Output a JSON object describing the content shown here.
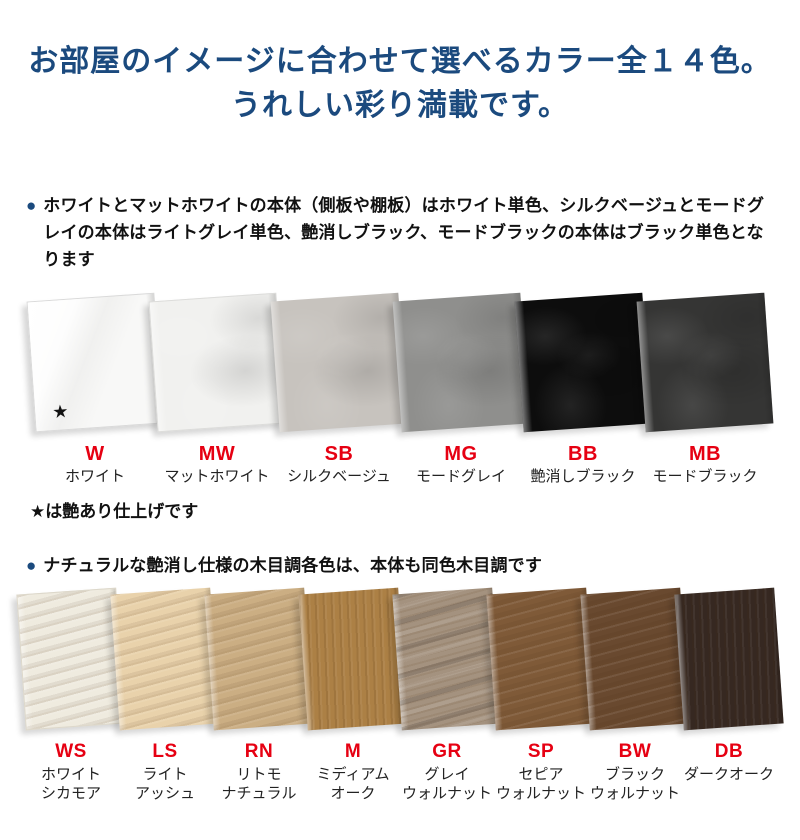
{
  "colors": {
    "accent_blue": "#1b4a7e",
    "code_red": "#e60012"
  },
  "title": {
    "line1": "お部屋のイメージに合わせて選べるカラー全１４色。",
    "line2": "うれしい彩り満載です。"
  },
  "bullet_glyph": "●",
  "section1": {
    "note": "ホワイトとマットホワイトの本体（側板や棚板）はホワイト単色、シルクベージュとモードグレイの本体はライトグレイ単色、艶消しブラック、モードブラックの本体はブラック単色となります",
    "footnote": "は艶あり仕上げです",
    "footnote_star": "★",
    "swatches": [
      {
        "code": "W",
        "name": "ホワイト",
        "color": "#f8f8f7",
        "texture": "gloss",
        "border": "#d9d9d9",
        "star": "★"
      },
      {
        "code": "MW",
        "name": "マットホワイト",
        "color": "#f1f1ef",
        "texture": "mottle",
        "border": "#dcdcda"
      },
      {
        "code": "SB",
        "name": "シルクベージュ",
        "color": "#c7c3be",
        "texture": "mottle"
      },
      {
        "code": "MG",
        "name": "モードグレイ",
        "color": "#8f8f8d",
        "texture": "mottle"
      },
      {
        "code": "BB",
        "name": "艶消しブラック",
        "color": "#0d0d0d",
        "texture": "mottle"
      },
      {
        "code": "MB",
        "name": "モードブラック",
        "color": "#353534",
        "texture": "mottle"
      }
    ]
  },
  "section2": {
    "note": "ナチュラルな艶消し仕様の木目調各色は、本体も同色木目調です",
    "swatches": [
      {
        "code": "WS",
        "name1": "ホワイト",
        "name2": "シカモア",
        "color": "#efebdf",
        "texture": "grain-h",
        "border": "#ddd8cb"
      },
      {
        "code": "LS",
        "name1": "ライト",
        "name2": "アッシュ",
        "color": "#e9d2ab",
        "texture": "grain-h"
      },
      {
        "code": "RN",
        "name1": "リトモ",
        "name2": "ナチュラル",
        "color": "#cbae83",
        "texture": "grain-h"
      },
      {
        "code": "M",
        "name1": "ミディアム",
        "name2": "オーク",
        "color": "#ac8045",
        "texture": "grain-v"
      },
      {
        "code": "GR",
        "name1": "グレイ",
        "name2": "ウォルナット",
        "color": "#a4927f",
        "texture": "bands"
      },
      {
        "code": "SP",
        "name1": "セピア",
        "name2": "ウォルナット",
        "color": "#7f5a38",
        "texture": "grain-h"
      },
      {
        "code": "BW",
        "name1": "ブラック",
        "name2": "ウォルナット",
        "color": "#69492f",
        "texture": "grain-h"
      },
      {
        "code": "DB",
        "name1": "ダークオーク",
        "name2": "",
        "color": "#362821",
        "texture": "grain-v"
      }
    ]
  }
}
